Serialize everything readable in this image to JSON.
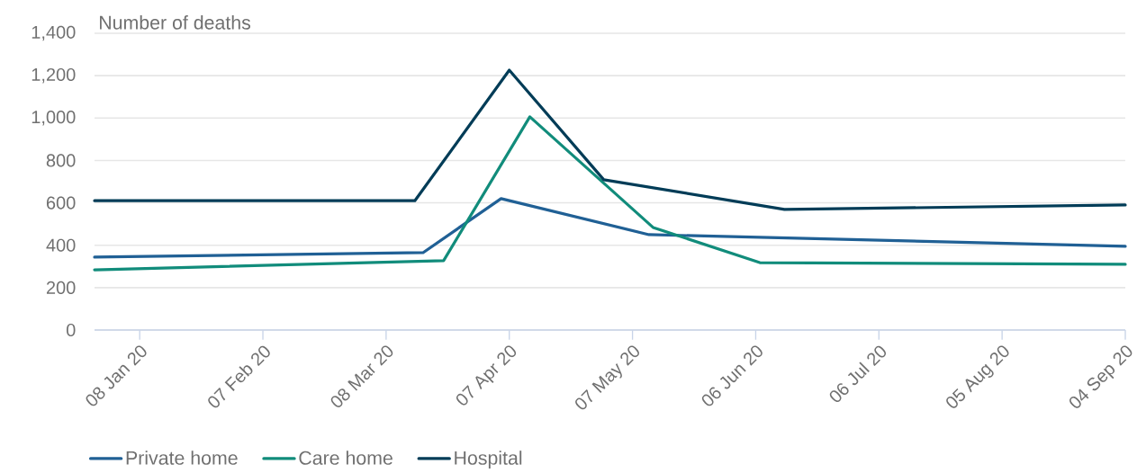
{
  "chart_data": {
    "type": "line",
    "ylabel": "Number of deaths",
    "xlim": [
      "2019-12-28",
      "2020-09-04"
    ],
    "ylim": [
      0,
      1400
    ],
    "xticks": [
      {
        "value": "2020-01-08",
        "label": "08 Jan 20"
      },
      {
        "value": "2020-02-07",
        "label": "07 Feb 20"
      },
      {
        "value": "2020-03-08",
        "label": "08 Mar 20"
      },
      {
        "value": "2020-04-07",
        "label": "07 Apr 20"
      },
      {
        "value": "2020-05-07",
        "label": "07 May 20"
      },
      {
        "value": "2020-06-06",
        "label": "06 Jun 20"
      },
      {
        "value": "2020-07-06",
        "label": "06 Jul 20"
      },
      {
        "value": "2020-08-05",
        "label": "05 Aug 20"
      },
      {
        "value": "2020-09-04",
        "label": "04 Sep 20"
      }
    ],
    "yticks": [
      {
        "value": 0,
        "label": "0"
      },
      {
        "value": 200,
        "label": "200"
      },
      {
        "value": 400,
        "label": "400"
      },
      {
        "value": 600,
        "label": "600"
      },
      {
        "value": 800,
        "label": "800"
      },
      {
        "value": 1000,
        "label": "1,000"
      },
      {
        "value": 1200,
        "label": "1,200"
      },
      {
        "value": 1400,
        "label": "1,400"
      }
    ],
    "grid": "y",
    "legend": "bottom",
    "marker": "none",
    "line_style": "solid",
    "series": [
      {
        "name": "Private home",
        "color": "#206095",
        "x": [
          "2019-12-28",
          "2020-03-17",
          "2020-04-05",
          "2020-05-11",
          "2020-09-04"
        ],
        "values": [
          344,
          365,
          620,
          450,
          395
        ]
      },
      {
        "name": "Care home",
        "color": "#118c7b",
        "x": [
          "2019-12-28",
          "2020-03-22",
          "2020-04-12",
          "2020-05-12",
          "2020-06-07",
          "2020-09-04"
        ],
        "values": [
          284,
          327,
          1006,
          484,
          318,
          310
        ]
      },
      {
        "name": "Hospital",
        "color": "#003c57",
        "x": [
          "2019-12-28",
          "2020-03-15",
          "2020-04-07",
          "2020-04-30",
          "2020-06-13",
          "2020-09-04"
        ],
        "values": [
          610,
          610,
          1226,
          709,
          569,
          590
        ]
      }
    ]
  }
}
